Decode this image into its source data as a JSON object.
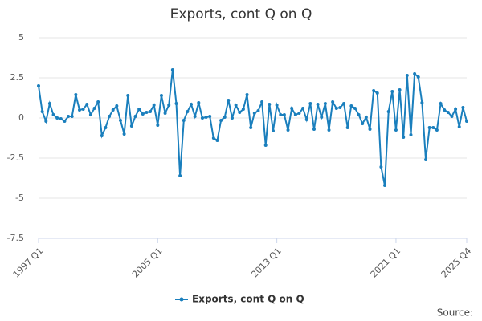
{
  "chart_data": {
    "type": "line",
    "title": "Exports, cont Q on Q",
    "source": "Source:",
    "categories": [
      "1997 Q1",
      null,
      null,
      null,
      null,
      null,
      null,
      null,
      null,
      null,
      null,
      null,
      null,
      null,
      null,
      null,
      null,
      null,
      null,
      null,
      null,
      null,
      null,
      null,
      null,
      null,
      null,
      null,
      null,
      null,
      null,
      null,
      "2005 Q1",
      null,
      null,
      null,
      null,
      null,
      null,
      null,
      null,
      null,
      null,
      null,
      null,
      null,
      null,
      null,
      null,
      null,
      null,
      null,
      null,
      null,
      null,
      null,
      null,
      null,
      null,
      null,
      null,
      null,
      null,
      null,
      "2013 Q1",
      null,
      null,
      null,
      null,
      null,
      null,
      null,
      null,
      null,
      null,
      null,
      null,
      null,
      null,
      null,
      null,
      null,
      null,
      null,
      null,
      null,
      null,
      null,
      null,
      null,
      null,
      null,
      null,
      null,
      null,
      null,
      "2021 Q1",
      null,
      null,
      null,
      null,
      null,
      null,
      null,
      null,
      null,
      null,
      null,
      null,
      null,
      null,
      null,
      null,
      null,
      null,
      "2025 Q4"
    ],
    "series": [
      {
        "name": "Exports, cont Q on Q",
        "color": "#1a7fbd",
        "values": [
          2.0,
          0.4,
          -0.2,
          0.9,
          0.2,
          0.0,
          -0.05,
          -0.2,
          0.1,
          0.1,
          1.45,
          0.5,
          0.55,
          0.85,
          0.2,
          0.6,
          1.0,
          -1.1,
          -0.6,
          0.1,
          0.5,
          0.75,
          -0.15,
          -1.0,
          1.4,
          -0.5,
          0.1,
          0.55,
          0.25,
          0.35,
          0.4,
          0.8,
          -0.45,
          1.4,
          0.3,
          0.8,
          3.0,
          0.9,
          -3.6,
          -0.15,
          0.4,
          0.85,
          0.1,
          0.95,
          0.0,
          0.05,
          0.1,
          -1.25,
          -1.4,
          -0.15,
          0.05,
          1.1,
          0.0,
          0.8,
          0.35,
          0.55,
          1.45,
          -0.6,
          0.3,
          0.45,
          1.0,
          -1.7,
          0.85,
          -0.8,
          0.8,
          0.2,
          0.2,
          -0.75,
          0.6,
          0.2,
          0.3,
          0.6,
          -0.1,
          0.9,
          -0.7,
          0.85,
          0.05,
          0.9,
          -0.75,
          1.0,
          0.6,
          0.65,
          0.9,
          -0.6,
          0.75,
          0.6,
          0.2,
          -0.35,
          0.05,
          -0.7,
          1.7,
          1.55,
          -3.05,
          -4.2,
          0.4,
          1.65,
          -0.75,
          1.75,
          -1.2,
          2.65,
          -1.05,
          2.75,
          2.55,
          0.95,
          -2.6,
          -0.6,
          -0.6,
          -0.75,
          0.9,
          0.5,
          0.35,
          0.1,
          0.55,
          -0.55,
          0.65,
          -0.2
        ]
      }
    ],
    "ylim": [
      -7.5,
      5
    ],
    "yticks": [
      5,
      2.5,
      0,
      -2.5,
      -5,
      -7.5
    ],
    "grid": true,
    "legend": "bottom"
  }
}
